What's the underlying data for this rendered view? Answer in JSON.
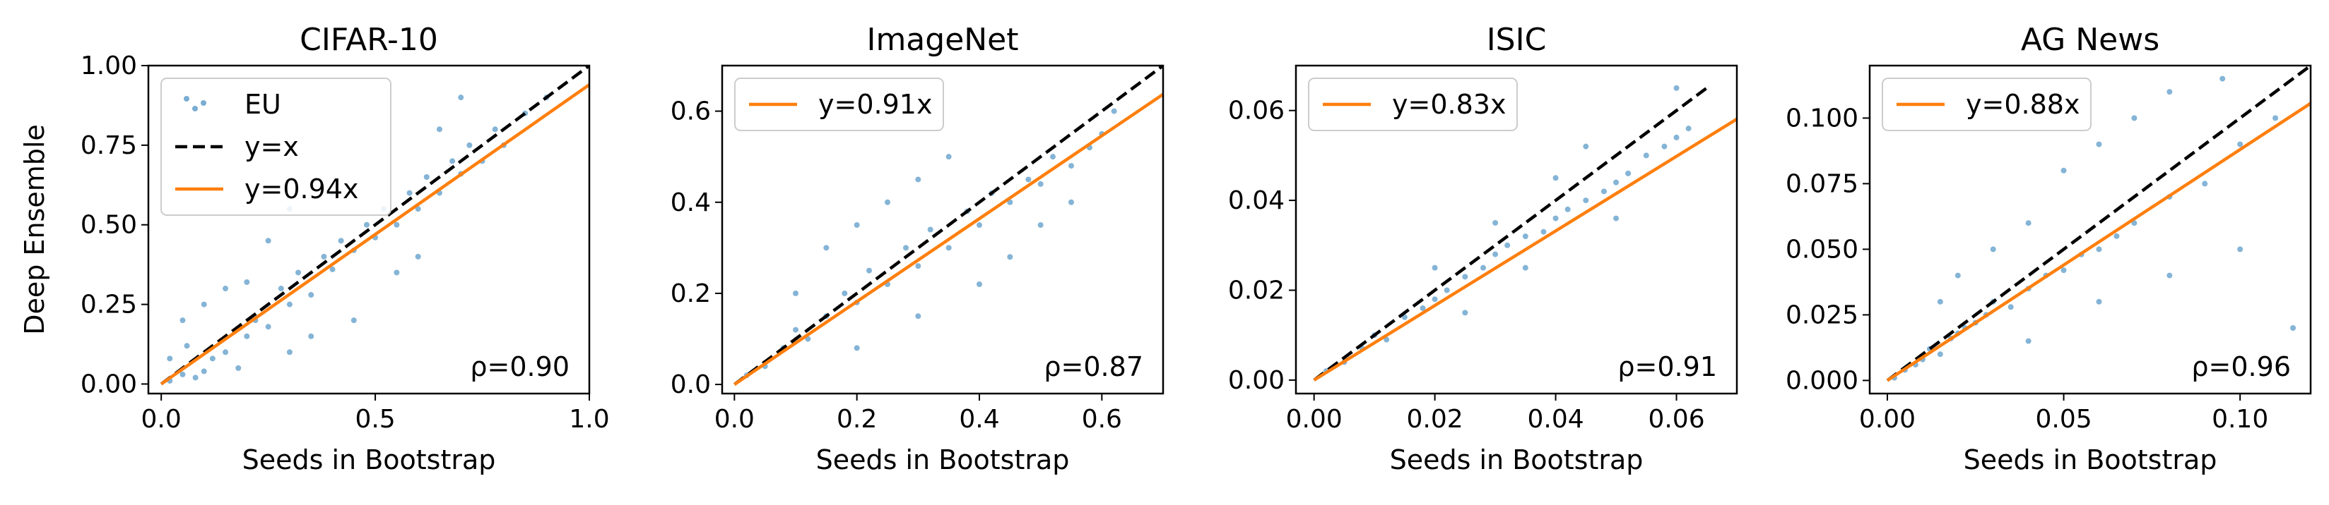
{
  "figure": {
    "shared_ylabel": "Deep Ensemble",
    "shared_xlabel": "Seeds in Bootstrap"
  },
  "colors": {
    "scatter": "#1f77b4",
    "fit_line": "#ff7f0e",
    "identity_line": "#000000",
    "axes": "#000000"
  },
  "chart_data": [
    {
      "type": "scatter",
      "title": "CIFAR-10",
      "xlabel": "Seeds in Bootstrap",
      "ylabel": "Deep Ensemble",
      "xlim": [
        -0.03,
        1.0
      ],
      "ylim": [
        -0.03,
        1.0
      ],
      "xticks": [
        0.0,
        0.5,
        1.0
      ],
      "xtick_labels": [
        "0.0",
        "0.5",
        "1.0"
      ],
      "yticks": [
        0.0,
        0.25,
        0.5,
        0.75,
        1.0
      ],
      "ytick_labels": [
        "0.00",
        "0.25",
        "0.50",
        "0.75",
        "1.00"
      ],
      "slope": 0.94,
      "rho_label": "ρ=0.90",
      "legend": {
        "placement": "top-left",
        "entries": [
          "EU",
          "y=x",
          "y=0.94x"
        ]
      },
      "series": [
        {
          "name": "EU",
          "kind": "points",
          "points": [
            [
              0.02,
              0.01
            ],
            [
              0.05,
              0.03
            ],
            [
              0.08,
              0.02
            ],
            [
              0.1,
              0.04
            ],
            [
              0.12,
              0.08
            ],
            [
              0.15,
              0.1
            ],
            [
              0.18,
              0.05
            ],
            [
              0.2,
              0.15
            ],
            [
              0.22,
              0.2
            ],
            [
              0.25,
              0.18
            ],
            [
              0.28,
              0.3
            ],
            [
              0.3,
              0.25
            ],
            [
              0.32,
              0.35
            ],
            [
              0.35,
              0.28
            ],
            [
              0.38,
              0.4
            ],
            [
              0.4,
              0.36
            ],
            [
              0.42,
              0.45
            ],
            [
              0.45,
              0.42
            ],
            [
              0.48,
              0.5
            ],
            [
              0.5,
              0.46
            ],
            [
              0.52,
              0.55
            ],
            [
              0.55,
              0.5
            ],
            [
              0.58,
              0.6
            ],
            [
              0.6,
              0.55
            ],
            [
              0.62,
              0.65
            ],
            [
              0.65,
              0.6
            ],
            [
              0.68,
              0.7
            ],
            [
              0.7,
              0.66
            ],
            [
              0.72,
              0.75
            ],
            [
              0.75,
              0.7
            ],
            [
              0.78,
              0.8
            ],
            [
              0.8,
              0.75
            ],
            [
              0.85,
              0.85
            ],
            [
              0.9,
              0.9
            ],
            [
              0.15,
              0.3
            ],
            [
              0.2,
              0.32
            ],
            [
              0.25,
              0.45
            ],
            [
              0.1,
              0.25
            ],
            [
              0.05,
              0.2
            ],
            [
              0.3,
              0.1
            ],
            [
              0.35,
              0.15
            ],
            [
              0.45,
              0.2
            ],
            [
              0.55,
              0.35
            ],
            [
              0.6,
              0.4
            ],
            [
              0.65,
              0.8
            ],
            [
              0.7,
              0.9
            ],
            [
              0.4,
              0.6
            ],
            [
              0.3,
              0.55
            ],
            [
              0.02,
              0.08
            ],
            [
              0.06,
              0.12
            ]
          ]
        },
        {
          "name": "y=x",
          "kind": "line",
          "slope": 1.0
        },
        {
          "name": "y=0.94x",
          "kind": "line",
          "slope": 0.94
        }
      ]
    },
    {
      "type": "scatter",
      "title": "ImageNet",
      "xlabel": "Seeds in Bootstrap",
      "ylabel": "",
      "xlim": [
        -0.02,
        0.7
      ],
      "ylim": [
        -0.02,
        0.7
      ],
      "xticks": [
        0.0,
        0.2,
        0.4,
        0.6
      ],
      "xtick_labels": [
        "0.0",
        "0.2",
        "0.4",
        "0.6"
      ],
      "yticks": [
        0.0,
        0.2,
        0.4,
        0.6
      ],
      "ytick_labels": [
        "0.0",
        "0.2",
        "0.4",
        "0.6"
      ],
      "slope": 0.91,
      "rho_label": "ρ=0.87",
      "legend": {
        "placement": "top-left",
        "entries": [
          "y=0.91x"
        ]
      },
      "series": [
        {
          "name": "EU",
          "kind": "points",
          "points": [
            [
              0.02,
              0.02
            ],
            [
              0.05,
              0.04
            ],
            [
              0.08,
              0.08
            ],
            [
              0.1,
              0.12
            ],
            [
              0.12,
              0.1
            ],
            [
              0.15,
              0.15
            ],
            [
              0.18,
              0.2
            ],
            [
              0.2,
              0.18
            ],
            [
              0.22,
              0.25
            ],
            [
              0.25,
              0.22
            ],
            [
              0.28,
              0.3
            ],
            [
              0.3,
              0.26
            ],
            [
              0.32,
              0.34
            ],
            [
              0.35,
              0.3
            ],
            [
              0.38,
              0.38
            ],
            [
              0.4,
              0.35
            ],
            [
              0.42,
              0.42
            ],
            [
              0.45,
              0.4
            ],
            [
              0.48,
              0.45
            ],
            [
              0.5,
              0.44
            ],
            [
              0.52,
              0.5
            ],
            [
              0.55,
              0.48
            ],
            [
              0.58,
              0.52
            ],
            [
              0.6,
              0.55
            ],
            [
              0.62,
              0.6
            ],
            [
              0.1,
              0.2
            ],
            [
              0.15,
              0.3
            ],
            [
              0.2,
              0.35
            ],
            [
              0.25,
              0.4
            ],
            [
              0.3,
              0.45
            ],
            [
              0.35,
              0.5
            ],
            [
              0.2,
              0.08
            ],
            [
              0.3,
              0.15
            ],
            [
              0.4,
              0.22
            ],
            [
              0.45,
              0.28
            ],
            [
              0.5,
              0.35
            ],
            [
              0.55,
              0.4
            ]
          ]
        },
        {
          "name": "y=x",
          "kind": "line",
          "slope": 1.0
        },
        {
          "name": "y=0.91x",
          "kind": "line",
          "slope": 0.91
        }
      ]
    },
    {
      "type": "scatter",
      "title": "ISIC",
      "xlabel": "Seeds in Bootstrap",
      "ylabel": "",
      "xlim": [
        -0.003,
        0.07
      ],
      "ylim": [
        -0.003,
        0.07
      ],
      "xticks": [
        0.0,
        0.02,
        0.04,
        0.06
      ],
      "xtick_labels": [
        "0.00",
        "0.02",
        "0.04",
        "0.06"
      ],
      "yticks": [
        0.0,
        0.02,
        0.04,
        0.06
      ],
      "ytick_labels": [
        "0.00",
        "0.02",
        "0.04",
        "0.06"
      ],
      "slope": 0.83,
      "rho_label": "ρ=0.91",
      "legend": {
        "placement": "top-left",
        "entries": [
          "y=0.83x"
        ]
      },
      "series": [
        {
          "name": "EU",
          "kind": "points",
          "points": [
            [
              0.002,
              0.002
            ],
            [
              0.005,
              0.004
            ],
            [
              0.008,
              0.007
            ],
            [
              0.01,
              0.01
            ],
            [
              0.012,
              0.009
            ],
            [
              0.015,
              0.014
            ],
            [
              0.018,
              0.016
            ],
            [
              0.02,
              0.018
            ],
            [
              0.022,
              0.02
            ],
            [
              0.025,
              0.023
            ],
            [
              0.028,
              0.025
            ],
            [
              0.03,
              0.028
            ],
            [
              0.032,
              0.03
            ],
            [
              0.035,
              0.032
            ],
            [
              0.038,
              0.033
            ],
            [
              0.04,
              0.036
            ],
            [
              0.042,
              0.038
            ],
            [
              0.045,
              0.04
            ],
            [
              0.048,
              0.042
            ],
            [
              0.05,
              0.044
            ],
            [
              0.052,
              0.046
            ],
            [
              0.055,
              0.05
            ],
            [
              0.058,
              0.052
            ],
            [
              0.06,
              0.054
            ],
            [
              0.062,
              0.056
            ],
            [
              0.02,
              0.025
            ],
            [
              0.03,
              0.035
            ],
            [
              0.04,
              0.045
            ],
            [
              0.045,
              0.052
            ],
            [
              0.025,
              0.015
            ],
            [
              0.035,
              0.025
            ],
            [
              0.05,
              0.036
            ],
            [
              0.06,
              0.065
            ]
          ]
        },
        {
          "name": "y=x",
          "kind": "line",
          "slope": 1.0,
          "max_x": 0.065
        },
        {
          "name": "y=0.83x",
          "kind": "line",
          "slope": 0.83
        }
      ]
    },
    {
      "type": "scatter",
      "title": "AG News",
      "xlabel": "Seeds in Bootstrap",
      "ylabel": "",
      "xlim": [
        -0.005,
        0.12
      ],
      "ylim": [
        -0.005,
        0.12
      ],
      "xticks": [
        0.0,
        0.05,
        0.1
      ],
      "xtick_labels": [
        "0.00",
        "0.05",
        "0.10"
      ],
      "yticks": [
        0.0,
        0.025,
        0.05,
        0.075,
        0.1
      ],
      "ytick_labels": [
        "0.000",
        "0.025",
        "0.050",
        "0.075",
        "0.100"
      ],
      "slope": 0.88,
      "rho_label": "ρ=0.96",
      "legend": {
        "placement": "top-left",
        "entries": [
          "y=0.88x"
        ]
      },
      "series": [
        {
          "name": "EU",
          "kind": "points",
          "points": [
            [
              0.002,
              0.001
            ],
            [
              0.005,
              0.004
            ],
            [
              0.008,
              0.006
            ],
            [
              0.01,
              0.008
            ],
            [
              0.012,
              0.012
            ],
            [
              0.015,
              0.01
            ],
            [
              0.018,
              0.016
            ],
            [
              0.02,
              0.018
            ],
            [
              0.022,
              0.02
            ],
            [
              0.025,
              0.022
            ],
            [
              0.028,
              0.025
            ],
            [
              0.03,
              0.03
            ],
            [
              0.035,
              0.028
            ],
            [
              0.04,
              0.035
            ],
            [
              0.045,
              0.04
            ],
            [
              0.05,
              0.042
            ],
            [
              0.055,
              0.048
            ],
            [
              0.06,
              0.05
            ],
            [
              0.065,
              0.055
            ],
            [
              0.07,
              0.06
            ],
            [
              0.08,
              0.07
            ],
            [
              0.09,
              0.075
            ],
            [
              0.1,
              0.09
            ],
            [
              0.11,
              0.1
            ],
            [
              0.015,
              0.03
            ],
            [
              0.02,
              0.04
            ],
            [
              0.03,
              0.05
            ],
            [
              0.04,
              0.06
            ],
            [
              0.05,
              0.08
            ],
            [
              0.06,
              0.09
            ],
            [
              0.07,
              0.1
            ],
            [
              0.08,
              0.11
            ],
            [
              0.04,
              0.015
            ],
            [
              0.06,
              0.03
            ],
            [
              0.08,
              0.04
            ],
            [
              0.1,
              0.05
            ],
            [
              0.115,
              0.02
            ],
            [
              0.095,
              0.115
            ]
          ]
        },
        {
          "name": "y=x",
          "kind": "line",
          "slope": 1.0
        },
        {
          "name": "y=0.88x",
          "kind": "line",
          "slope": 0.88
        }
      ]
    }
  ]
}
